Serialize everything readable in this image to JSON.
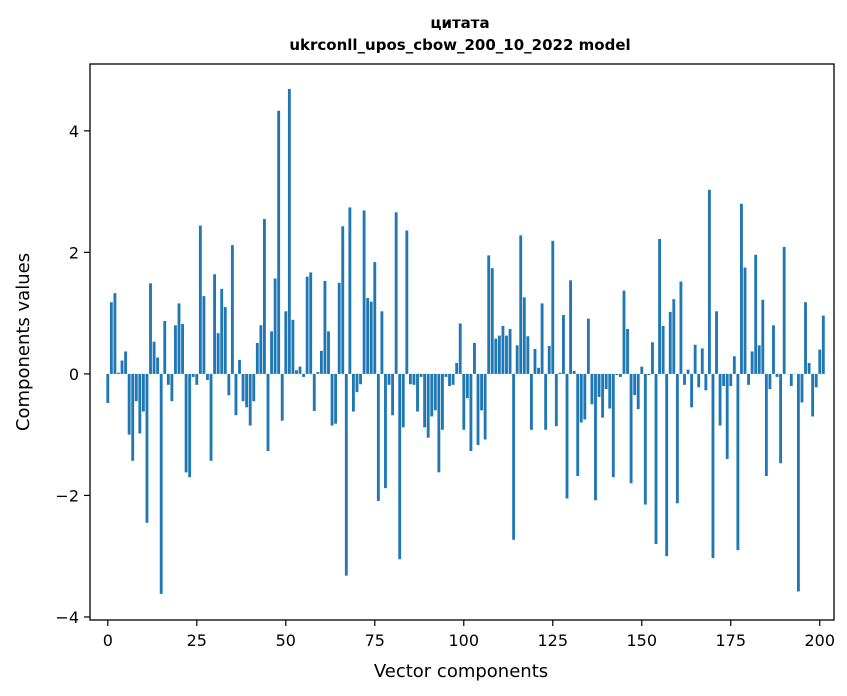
{
  "chart_data": {
    "type": "bar",
    "title": "цитата",
    "subtitle": "ukrconll_upos_cbow_200_10_2022 model",
    "xlabel": "Vector components",
    "ylabel": "Components values",
    "xlim": [
      -5,
      204
    ],
    "ylim": [
      -4.05,
      5.1
    ],
    "xticks": [
      0,
      25,
      50,
      75,
      100,
      125,
      150,
      175,
      200
    ],
    "yticks": [
      -4,
      -2,
      0,
      2,
      4
    ],
    "ytick_labels": [
      "−4",
      "−2",
      "0",
      "2",
      "4"
    ],
    "grid": false,
    "bar_color": "#1f77b4",
    "values": [
      -0.48,
      1.18,
      1.33,
      0.02,
      0.22,
      0.37,
      -1.0,
      -1.43,
      -0.45,
      -0.98,
      -0.62,
      -2.45,
      1.49,
      0.53,
      0.27,
      -3.62,
      0.87,
      -0.18,
      -0.45,
      0.8,
      1.16,
      0.82,
      -1.62,
      -1.7,
      -0.05,
      -0.18,
      2.44,
      1.28,
      -0.1,
      -1.43,
      1.64,
      0.67,
      1.4,
      1.1,
      -0.35,
      2.12,
      -0.68,
      0.23,
      -0.45,
      -0.55,
      -0.85,
      -0.45,
      0.51,
      0.8,
      2.55,
      -1.27,
      0.7,
      1.57,
      4.33,
      -0.77,
      1.03,
      4.69,
      0.89,
      0.06,
      0.12,
      -0.05,
      1.6,
      1.67,
      -0.61,
      0.03,
      0.38,
      1.53,
      0.7,
      -0.85,
      -0.82,
      1.5,
      2.43,
      -3.32,
      2.74,
      -0.62,
      -0.3,
      -0.17,
      2.69,
      1.25,
      1.19,
      1.84,
      -2.09,
      1.03,
      -1.88,
      -0.18,
      -0.68,
      2.66,
      -3.05,
      -0.88,
      2.36,
      -0.17,
      -0.18,
      -0.62,
      -0.05,
      -0.88,
      -1.05,
      -0.7,
      -0.6,
      -1.62,
      -0.92,
      -0.05,
      -0.2,
      -0.18,
      0.18,
      0.83,
      -0.92,
      -0.4,
      -1.27,
      0.51,
      -1.17,
      -0.6,
      -1.08,
      1.95,
      1.74,
      0.58,
      0.63,
      0.79,
      0.63,
      0.74,
      -2.73,
      0.47,
      2.28,
      1.26,
      0.62,
      -0.92,
      0.41,
      0.1,
      1.16,
      -0.92,
      0.46,
      2.19,
      -0.86,
      0.02,
      0.97,
      -2.05,
      1.54,
      0.05,
      -1.68,
      -0.8,
      -0.75,
      0.91,
      -0.5,
      -2.08,
      -0.38,
      -0.72,
      -0.25,
      -0.57,
      -1.7,
      -0.02,
      -0.05,
      1.37,
      0.74,
      -1.8,
      -0.35,
      -0.58,
      0.12,
      -2.15,
      -0.02,
      0.52,
      -2.8,
      2.22,
      0.79,
      -3.0,
      1.02,
      1.23,
      -2.13,
      1.52,
      -0.18,
      0.07,
      -0.55,
      0.48,
      -0.22,
      0.42,
      -0.27,
      3.03,
      -3.03,
      1.03,
      -0.85,
      -0.2,
      -1.4,
      -0.2,
      0.29,
      -2.9,
      2.8,
      1.75,
      -0.18,
      0.37,
      1.96,
      0.47,
      1.22,
      -1.68,
      -0.25,
      0.8,
      -0.05,
      -1.47,
      2.09,
      0.0,
      -0.2,
      0.0,
      -3.58,
      -0.47,
      1.18,
      0.18,
      -0.7,
      -0.22,
      0.4,
      0.96
    ]
  }
}
